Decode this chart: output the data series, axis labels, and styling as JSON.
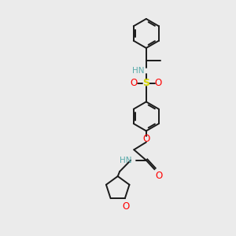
{
  "bg_color": "#ebebeb",
  "bond_color": "#1a1a1a",
  "N_color": "#5aabab",
  "O_color": "#ff0000",
  "S_color": "#d4d400",
  "figsize": [
    3.0,
    3.0
  ],
  "dpi": 100,
  "xlim": [
    0,
    10
  ],
  "ylim": [
    0,
    10
  ]
}
